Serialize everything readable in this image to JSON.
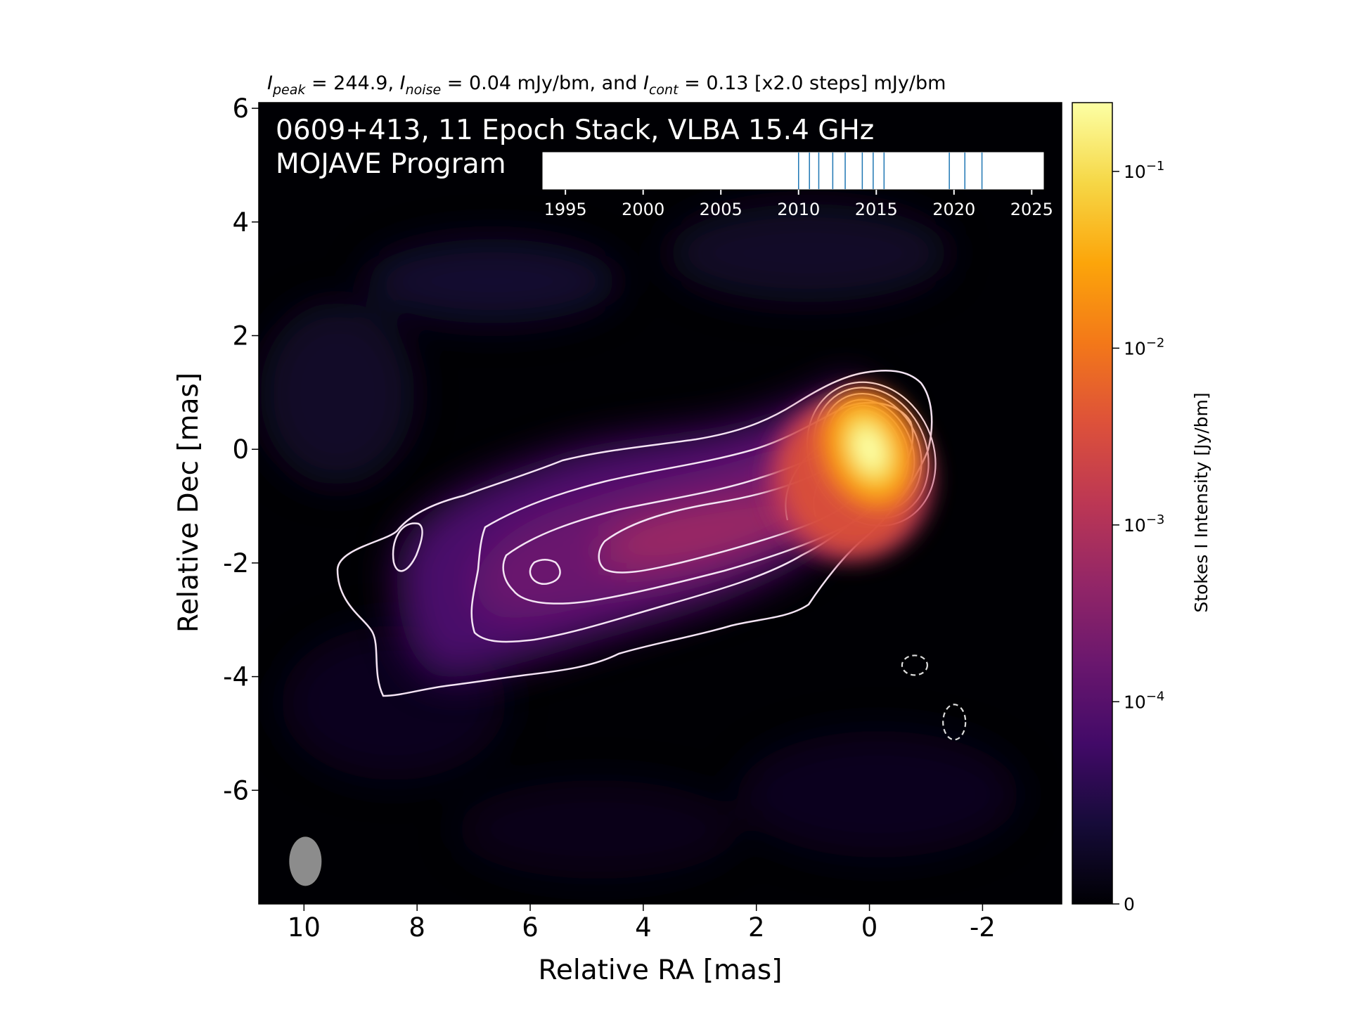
{
  "header": {
    "peak_value": "244.9",
    "noise_value": "0.04 mJy/bm",
    "cont_value": "0.13 [x2.0 steps] mJy/bm",
    "label_peak": "I",
    "sub_peak": "peak",
    "label_noise": "I",
    "sub_noise": "noise",
    "label_cont": "I",
    "sub_cont": "cont",
    "eq": " = ",
    "sep_comma": ", ",
    "sep_and": ", and "
  },
  "image_title": {
    "line1": "0609+413, 11 Epoch Stack, VLBA 15.4 GHz",
    "line2": "MOJAVE Program"
  },
  "axes": {
    "xlabel": "Relative RA [mas]",
    "ylabel": "Relative Dec [mas]",
    "xlim": [
      10.8,
      -3.4
    ],
    "ylim": [
      -8.0,
      6.1
    ],
    "xticks": [
      10,
      8,
      6,
      4,
      2,
      0,
      -2
    ],
    "yticks": [
      6,
      4,
      2,
      0,
      -2,
      -4,
      -6
    ]
  },
  "colorbar": {
    "label": "Stokes I Intensity [Jy/bm]",
    "ticks": [
      {
        "value": 0.1,
        "label": "10",
        "exp": "−1"
      },
      {
        "value": 0.01,
        "label": "10",
        "exp": "−2"
      },
      {
        "value": 0.001,
        "label": "10",
        "exp": "−3"
      },
      {
        "value": 0.0001,
        "label": "10",
        "exp": "−4"
      },
      {
        "value": 0,
        "label": "0",
        "exp": ""
      }
    ],
    "colormap": "inferno"
  },
  "timeline": {
    "xlim": [
      1993.5,
      2025.8
    ],
    "ticks": [
      1995,
      2000,
      2005,
      2010,
      2015,
      2020,
      2025
    ],
    "epochs": [
      2010.0,
      2010.7,
      2011.3,
      2012.2,
      2013.0,
      2014.1,
      2014.8,
      2015.5,
      2019.7,
      2020.7,
      2021.8
    ]
  },
  "chart_data": {
    "type": "heatmap",
    "title": "0609+413, 11 Epoch Stack, VLBA 15.4 GHz",
    "xlabel": "Relative RA [mas]",
    "ylabel": "Relative Dec [mas]",
    "peak_flux_mJy_per_beam": 244.9,
    "noise_mJy_per_beam": 0.04,
    "lowest_contour_mJy_per_beam": 0.13,
    "contour_step_factor": 2.0,
    "components": [
      {
        "ra": 0.0,
        "dec": 0.0,
        "flux_Jy": 0.2449
      },
      {
        "ra": 0.7,
        "dec": -0.6,
        "flux_Jy": 0.006
      },
      {
        "ra": 2.2,
        "dec": -1.6,
        "flux_Jy": 0.0025
      },
      {
        "ra": 4.3,
        "dec": -1.9,
        "flux_Jy": 0.0018
      },
      {
        "ra": 6.5,
        "dec": -2.3,
        "flux_Jy": 0.0006
      },
      {
        "ra": 7.5,
        "dec": -1.5,
        "flux_Jy": 0.0002
      }
    ],
    "negative_contours": [
      {
        "ra": -0.8,
        "dec": -3.8
      },
      {
        "ra": -1.5,
        "dec": -4.8
      }
    ],
    "beam": {
      "ra": 10.0,
      "dec": -7.2
    }
  },
  "colors": {
    "contour": "#f4e4f4",
    "epoch_line": "#1f77b4",
    "beam": "#8c8c8c"
  }
}
